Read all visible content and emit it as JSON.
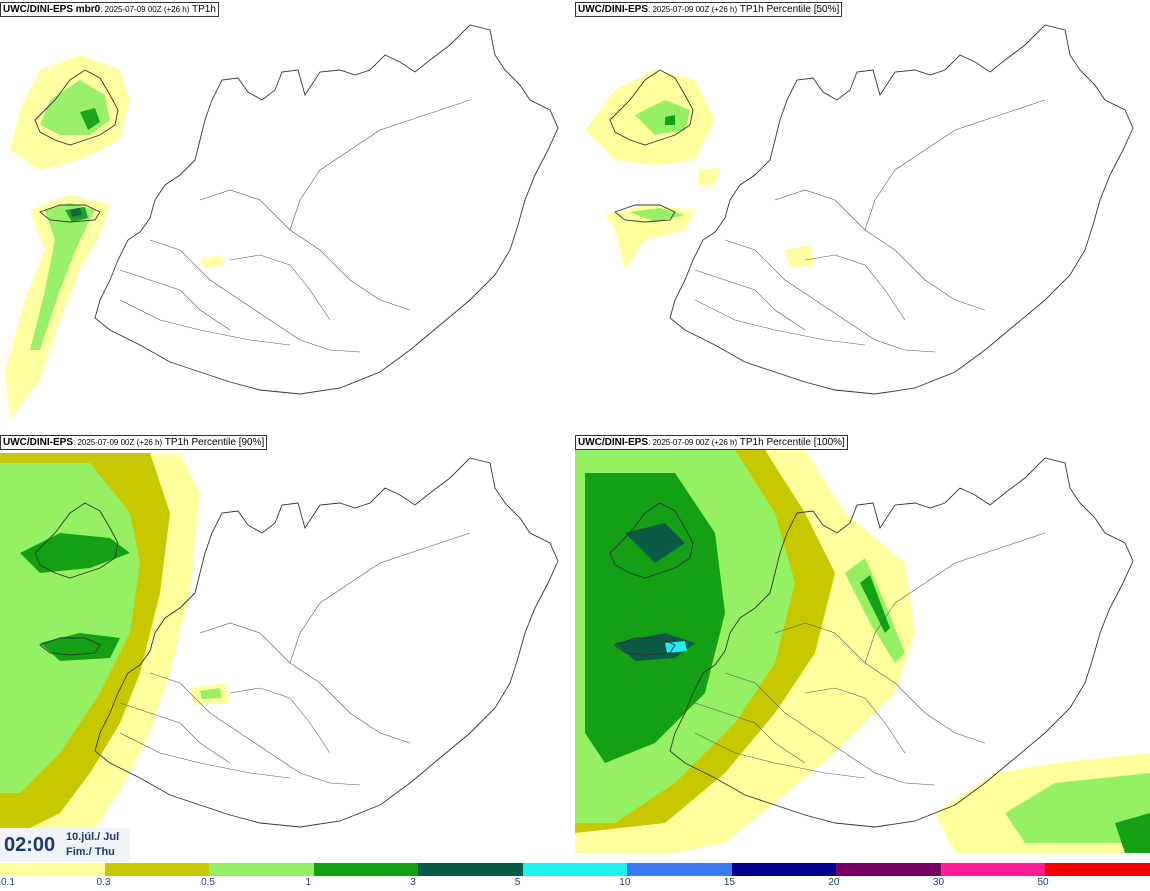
{
  "panels": [
    {
      "model": "UWC/DINI-EPS mbr0",
      "run": ": 2025-07-09 00Z (+26 h)",
      "field": "TP1h"
    },
    {
      "model": "UWC/DINI-EPS",
      "run": ": 2025-07-09 00Z (+26 h)",
      "field": "TP1h Percentile [50%]"
    },
    {
      "model": "UWC/DINI-EPS",
      "run": ": 2025-07-09 00Z (+26 h)",
      "field": "TP1h Percentile [90%]"
    },
    {
      "model": "UWC/DINI-EPS",
      "run": ": 2025-07-09 00Z (+26 h)",
      "field": "TP1h Percentile [100%]"
    }
  ],
  "valid_time": {
    "time": "02:00",
    "date_line1": "10.júl./ Jul",
    "date_line2": "Fim./ Thu"
  },
  "legend": {
    "labels": [
      "0.1",
      "0.3",
      "0.5",
      "1",
      "3",
      "5",
      "10",
      "15",
      "20",
      "30",
      "50"
    ],
    "colors": [
      "#ffff9e",
      "#c8c800",
      "#96f064",
      "#14a014",
      "#0a5a46",
      "#1ef0f0",
      "#3c78f0",
      "#00008c",
      "#780064",
      "#ff1e96",
      "#f00000"
    ]
  }
}
